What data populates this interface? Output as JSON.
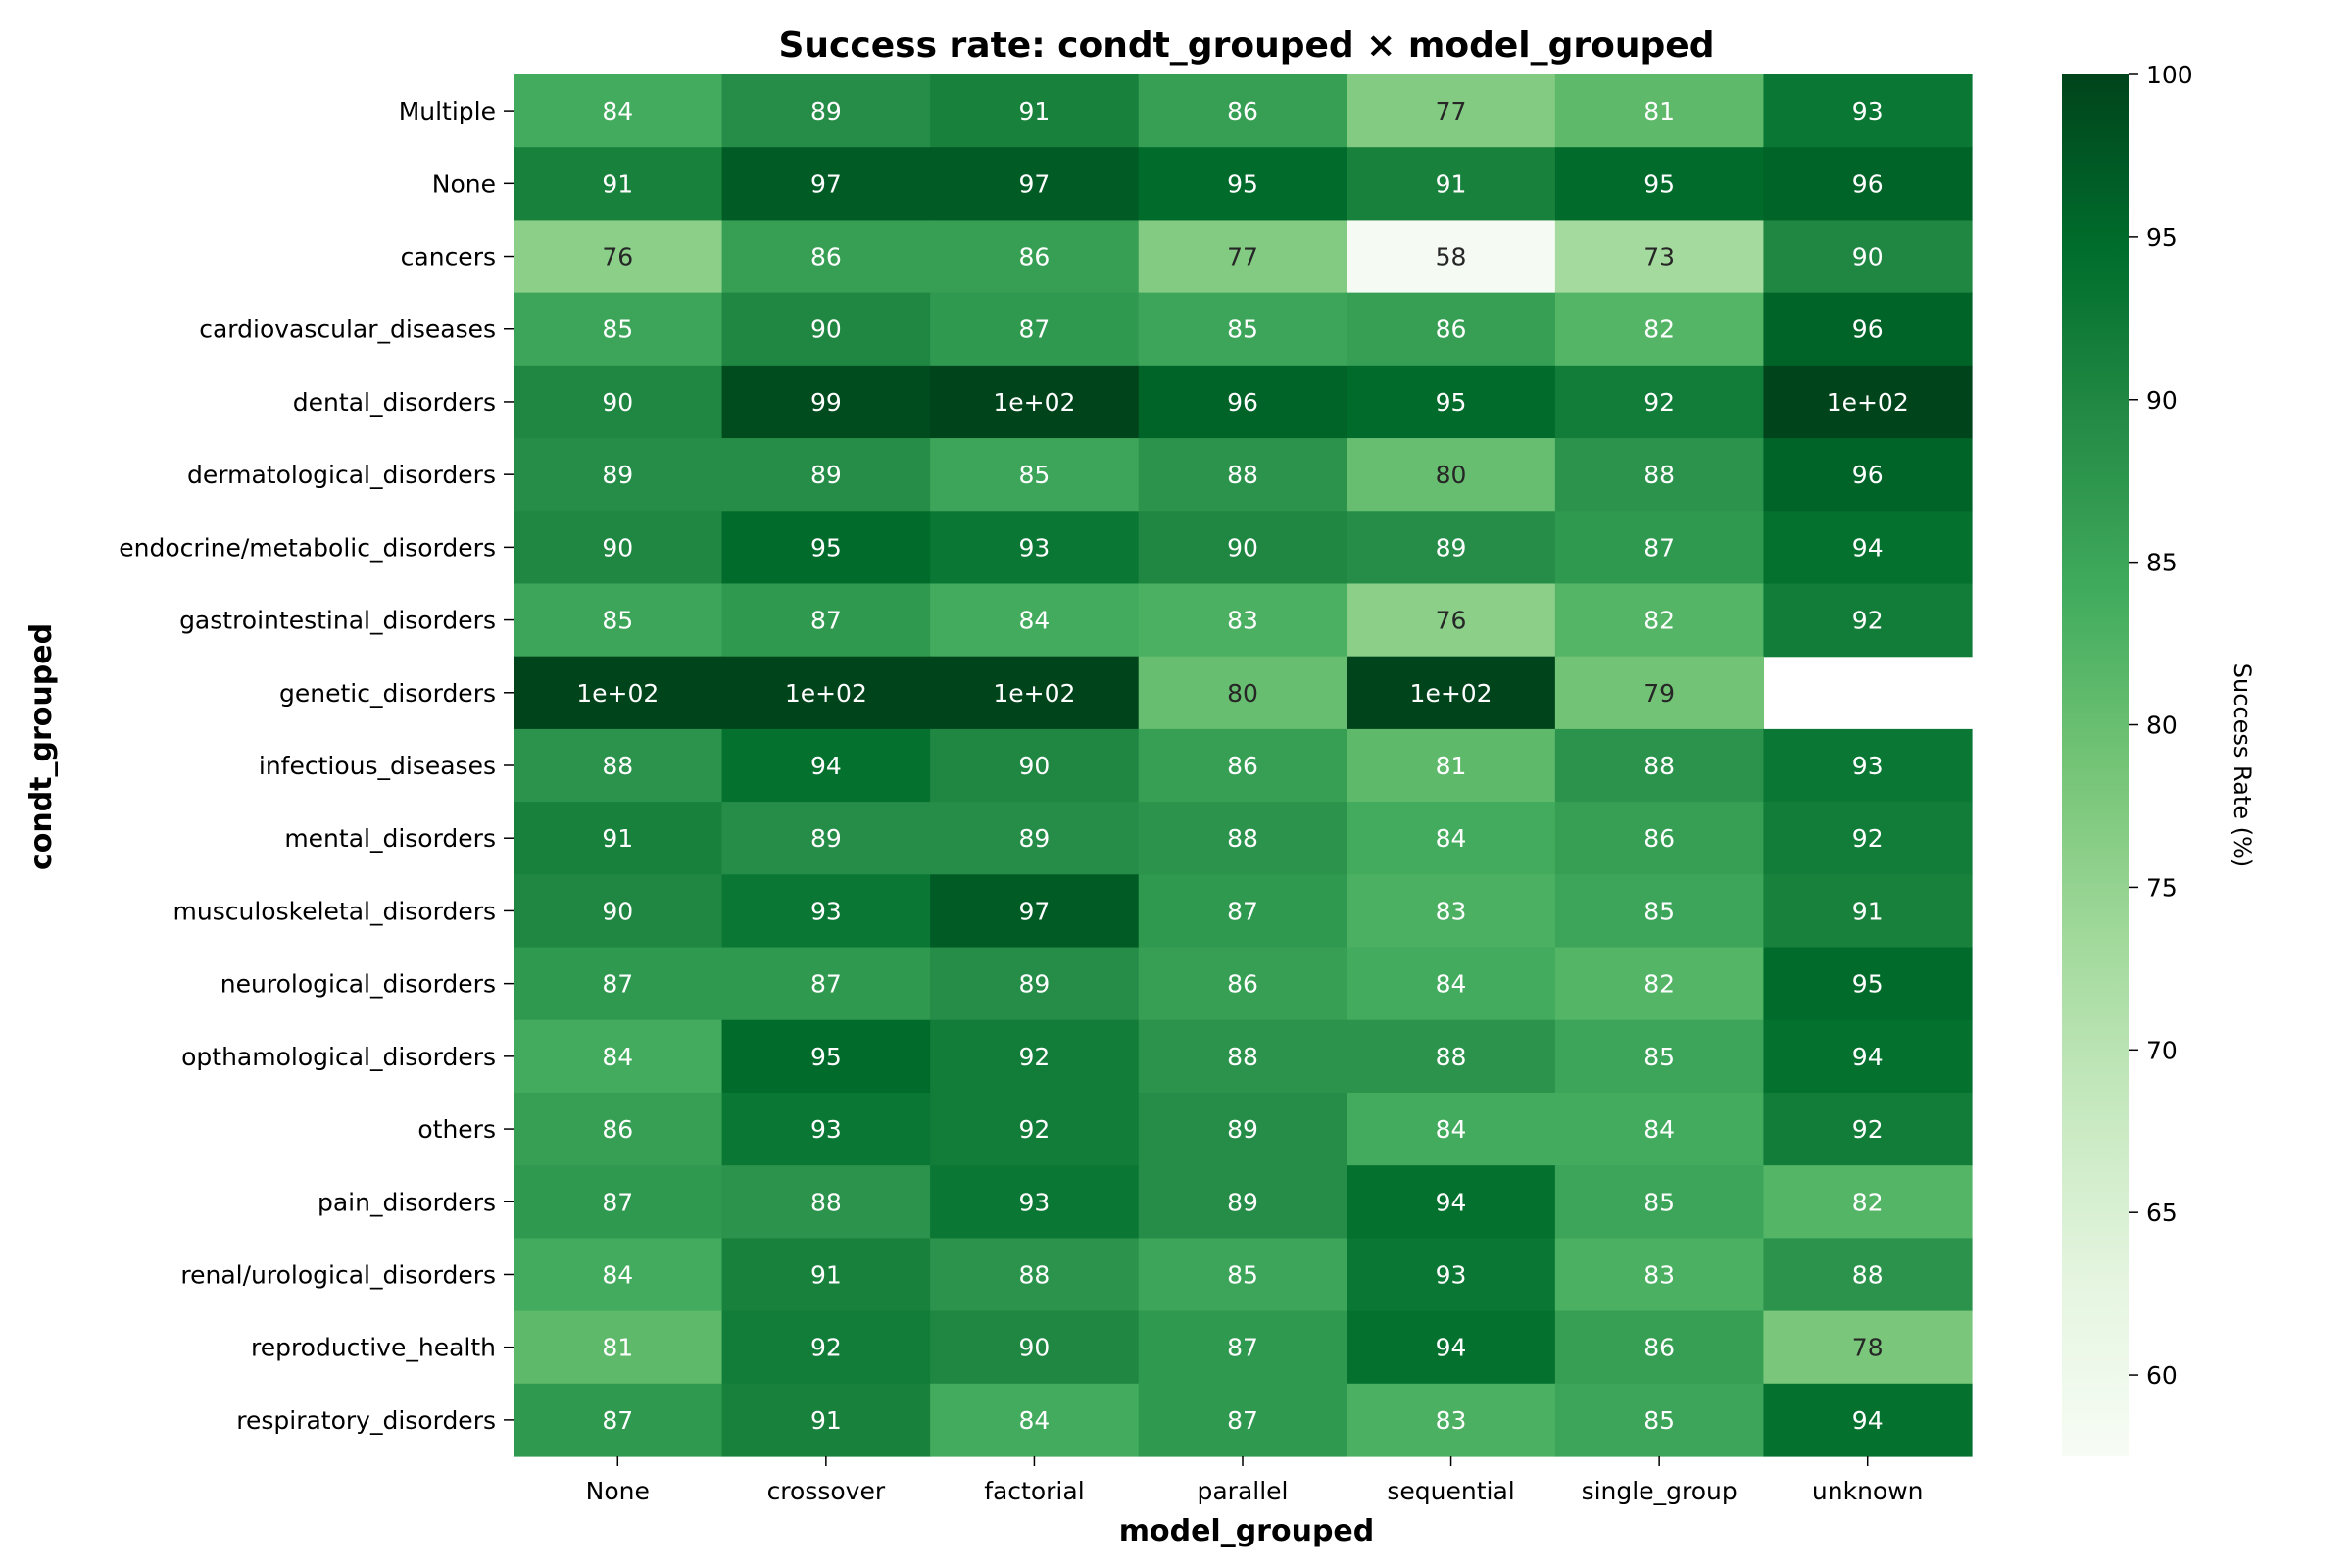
{
  "chart_data": {
    "type": "heatmap",
    "title": "Success rate: condt_grouped × model_grouped",
    "xlabel": "model_grouped",
    "ylabel": "condt_grouped",
    "x_categories": [
      "None",
      "crossover",
      "factorial",
      "parallel",
      "sequential",
      "single_group",
      "unknown"
    ],
    "y_categories": [
      "Multiple",
      "None",
      "cancers",
      "cardiovascular_diseases",
      "dental_disorders",
      "dermatological_disorders",
      "endocrine/metabolic_disorders",
      "gastrointestinal_disorders",
      "genetic_disorders",
      "infectious_diseases",
      "mental_disorders",
      "musculoskeletal_disorders",
      "neurological_disorders",
      "opthamological_disorders",
      "others",
      "pain_disorders",
      "renal/urological_disorders",
      "reproductive_health",
      "respiratory_disorders"
    ],
    "values": [
      [
        84,
        89,
        91,
        86,
        77,
        81,
        93
      ],
      [
        91,
        97,
        97,
        95,
        91,
        95,
        96
      ],
      [
        76,
        86,
        86,
        77,
        58,
        73,
        90
      ],
      [
        85,
        90,
        87,
        85,
        86,
        82,
        96
      ],
      [
        90,
        99,
        100,
        96,
        95,
        92,
        100
      ],
      [
        89,
        89,
        85,
        88,
        80,
        88,
        96
      ],
      [
        90,
        95,
        93,
        90,
        89,
        87,
        94
      ],
      [
        85,
        87,
        84,
        83,
        76,
        82,
        92
      ],
      [
        100,
        100,
        100,
        80,
        100,
        79,
        null
      ],
      [
        88,
        94,
        90,
        86,
        81,
        88,
        93
      ],
      [
        91,
        89,
        89,
        88,
        84,
        86,
        92
      ],
      [
        90,
        93,
        97,
        87,
        83,
        85,
        91
      ],
      [
        87,
        87,
        89,
        86,
        84,
        82,
        95
      ],
      [
        84,
        95,
        92,
        88,
        88,
        85,
        94
      ],
      [
        86,
        93,
        92,
        89,
        84,
        84,
        92
      ],
      [
        87,
        88,
        93,
        89,
        94,
        85,
        82
      ],
      [
        84,
        91,
        88,
        85,
        93,
        83,
        88
      ],
      [
        81,
        92,
        90,
        87,
        94,
        86,
        78
      ],
      [
        87,
        91,
        84,
        87,
        83,
        85,
        94
      ]
    ],
    "cell_labels": [
      [
        "84",
        "89",
        "91",
        "86",
        "77",
        "81",
        "93"
      ],
      [
        "91",
        "97",
        "97",
        "95",
        "91",
        "95",
        "96"
      ],
      [
        "76",
        "86",
        "86",
        "77",
        "58",
        "73",
        "90"
      ],
      [
        "85",
        "90",
        "87",
        "85",
        "86",
        "82",
        "96"
      ],
      [
        "90",
        "99",
        "1e+02",
        "96",
        "95",
        "92",
        "1e+02"
      ],
      [
        "89",
        "89",
        "85",
        "88",
        "80",
        "88",
        "96"
      ],
      [
        "90",
        "95",
        "93",
        "90",
        "89",
        "87",
        "94"
      ],
      [
        "85",
        "87",
        "84",
        "83",
        "76",
        "82",
        "92"
      ],
      [
        "1e+02",
        "1e+02",
        "1e+02",
        "80",
        "1e+02",
        "79",
        ""
      ],
      [
        "88",
        "94",
        "90",
        "86",
        "81",
        "88",
        "93"
      ],
      [
        "91",
        "89",
        "89",
        "88",
        "84",
        "86",
        "92"
      ],
      [
        "90",
        "93",
        "97",
        "87",
        "83",
        "85",
        "91"
      ],
      [
        "87",
        "87",
        "89",
        "86",
        "84",
        "82",
        "95"
      ],
      [
        "84",
        "95",
        "92",
        "88",
        "88",
        "85",
        "94"
      ],
      [
        "86",
        "93",
        "92",
        "89",
        "84",
        "84",
        "92"
      ],
      [
        "87",
        "88",
        "93",
        "89",
        "94",
        "85",
        "82"
      ],
      [
        "84",
        "91",
        "88",
        "85",
        "93",
        "83",
        "88"
      ],
      [
        "81",
        "92",
        "90",
        "87",
        "94",
        "86",
        "78"
      ],
      [
        "87",
        "91",
        "84",
        "87",
        "83",
        "85",
        "94"
      ]
    ],
    "colorbar": {
      "label": "Success Rate (%)",
      "range": [
        57.5,
        100
      ],
      "ticks": [
        60,
        65,
        70,
        75,
        80,
        85,
        90,
        95,
        100
      ],
      "colormap": "Greens",
      "color_stops": [
        "#f7fcf5",
        "#e5f5e0",
        "#c7e9c0",
        "#a1d99b",
        "#74c476",
        "#41ab5d",
        "#238b45",
        "#006d2c",
        "#00441b"
      ]
    },
    "legend": "colorbar-right",
    "grid": false
  }
}
